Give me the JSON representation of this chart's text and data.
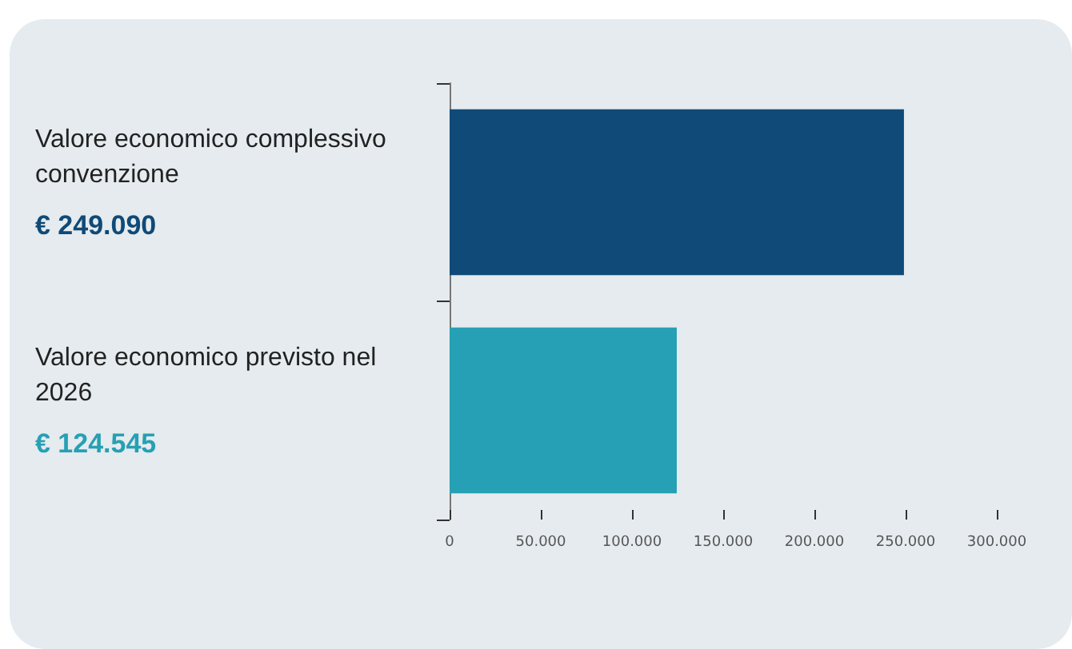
{
  "chart_data": {
    "type": "bar",
    "orientation": "horizontal",
    "categories": [
      "Valore economico complessivo convenzione",
      "Valore economico previsto nel 2026"
    ],
    "values": [
      249090,
      124545
    ],
    "colors": [
      "#0f4a78",
      "#26a0b4"
    ],
    "value_labels": [
      "€ 249.090",
      "€ 124.545"
    ],
    "xlim": [
      0,
      300000
    ],
    "xticks": [
      0,
      {
        "value": 50000,
        "label": "50.000"
      },
      {
        "value": 100000,
        "label": "100.000"
      },
      {
        "value": 150000,
        "label": "150.000"
      },
      {
        "value": 200000,
        "label": "200.000"
      },
      {
        "value": 250000,
        "label": "250.000"
      },
      {
        "value": 300000,
        "label": "300.000"
      }
    ],
    "grid": false
  }
}
